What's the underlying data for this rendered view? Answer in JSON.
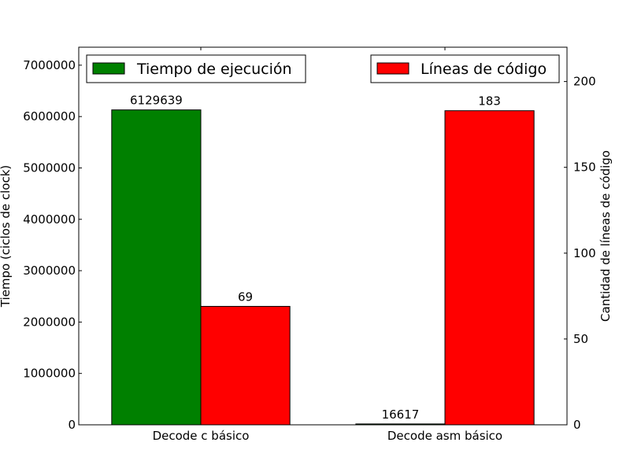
{
  "chart_data": {
    "type": "bar",
    "categories": [
      "Decode c básico",
      "Decode asm básico"
    ],
    "series": [
      {
        "name": "Tiempo de ejecución",
        "axis": "left",
        "color": "#008000",
        "values": [
          6129639,
          16617
        ],
        "value_labels": [
          "6129639",
          "16617"
        ]
      },
      {
        "name": "Líneas de código",
        "axis": "right",
        "color": "#ff0000",
        "values": [
          69,
          183
        ],
        "value_labels": [
          "69",
          "183"
        ]
      }
    ],
    "ylabel": "Tiempo (ciclos de clock)",
    "y2label": "Cantidad de líneas de código",
    "ylim": [
      0,
      7350000
    ],
    "y2lim": [
      0,
      220
    ],
    "yticks": [
      0,
      1000000,
      2000000,
      3000000,
      4000000,
      5000000,
      6000000,
      7000000
    ],
    "ytick_labels": [
      "0",
      "1000000",
      "2000000",
      "3000000",
      "4000000",
      "5000000",
      "6000000",
      "7000000"
    ],
    "y2ticks": [
      0,
      50,
      100,
      150,
      200
    ],
    "y2tick_labels": [
      "0",
      "50",
      "100",
      "150",
      "200"
    ],
    "legend_left": "top-left",
    "legend_right": "top-right",
    "grid": false
  }
}
